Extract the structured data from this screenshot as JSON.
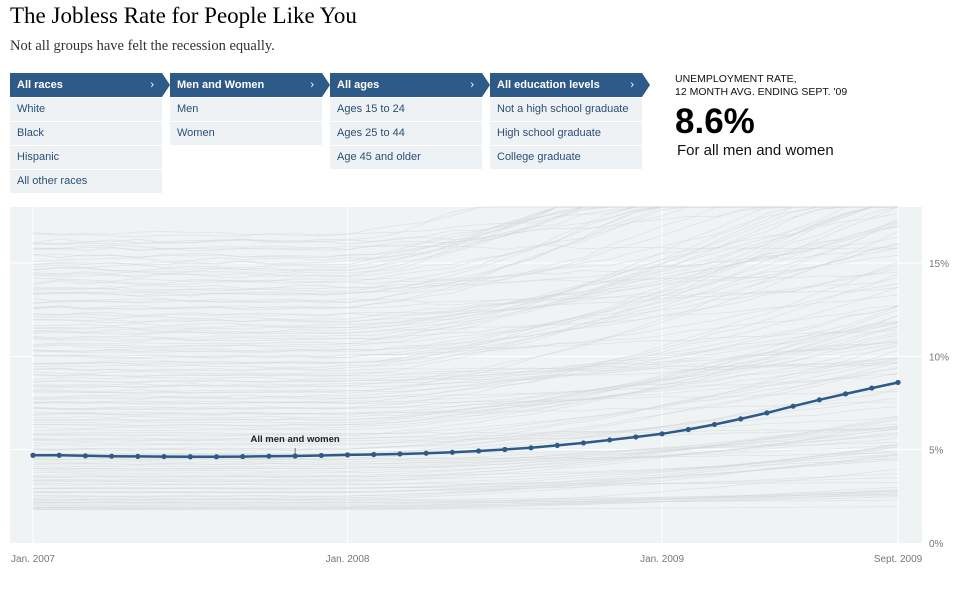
{
  "header": {
    "title": "The Jobless Rate for People Like You",
    "subtitle": "Not all groups have felt the recession equally."
  },
  "filters": [
    {
      "selected": "All races",
      "options": [
        "White",
        "Black",
        "Hispanic",
        "All other races"
      ]
    },
    {
      "selected": "Men and Women",
      "options": [
        "Men",
        "Women"
      ]
    },
    {
      "selected": "All ages",
      "options": [
        "Ages 15 to 24",
        "Ages 25 to 44",
        "Age 45 and older"
      ]
    },
    {
      "selected": "All education levels",
      "options": [
        "Not a high school graduate",
        "High school graduate",
        "College graduate"
      ]
    }
  ],
  "rate": {
    "label_line1": "UNEMPLOYMENT RATE,",
    "label_line2": "12 MONTH AVG. ENDING SEPT. '09",
    "value": "8.6%",
    "group": "For all men and women"
  },
  "colors": {
    "accent": "#2e5a8a",
    "option_bg": "#eef2f4",
    "plot_bg": "#eff3f4",
    "background_lines": "#d3d7d9"
  },
  "chart_data": {
    "type": "line",
    "x_ticks": [
      "Jan. 2007",
      "Jan. 2008",
      "Jan. 2009",
      "Sept. 2009"
    ],
    "y_ticks": [
      "0%",
      "5%",
      "10%",
      "15%"
    ],
    "ylim": [
      0,
      18
    ],
    "x_start": "2007-01",
    "x_end": "2009-09",
    "grid": true,
    "series": [
      {
        "name": "All men and women",
        "values": [
          4.7,
          4.7,
          4.67,
          4.65,
          4.64,
          4.63,
          4.62,
          4.62,
          4.63,
          4.65,
          4.66,
          4.69,
          4.72,
          4.74,
          4.77,
          4.81,
          4.86,
          4.93,
          5.01,
          5.1,
          5.23,
          5.36,
          5.52,
          5.68,
          5.85,
          6.08,
          6.35,
          6.65,
          6.97,
          7.33,
          7.67,
          7.99,
          8.3,
          8.6
        ]
      }
    ],
    "annotations": [
      {
        "text": "All men and women"
      }
    ]
  }
}
